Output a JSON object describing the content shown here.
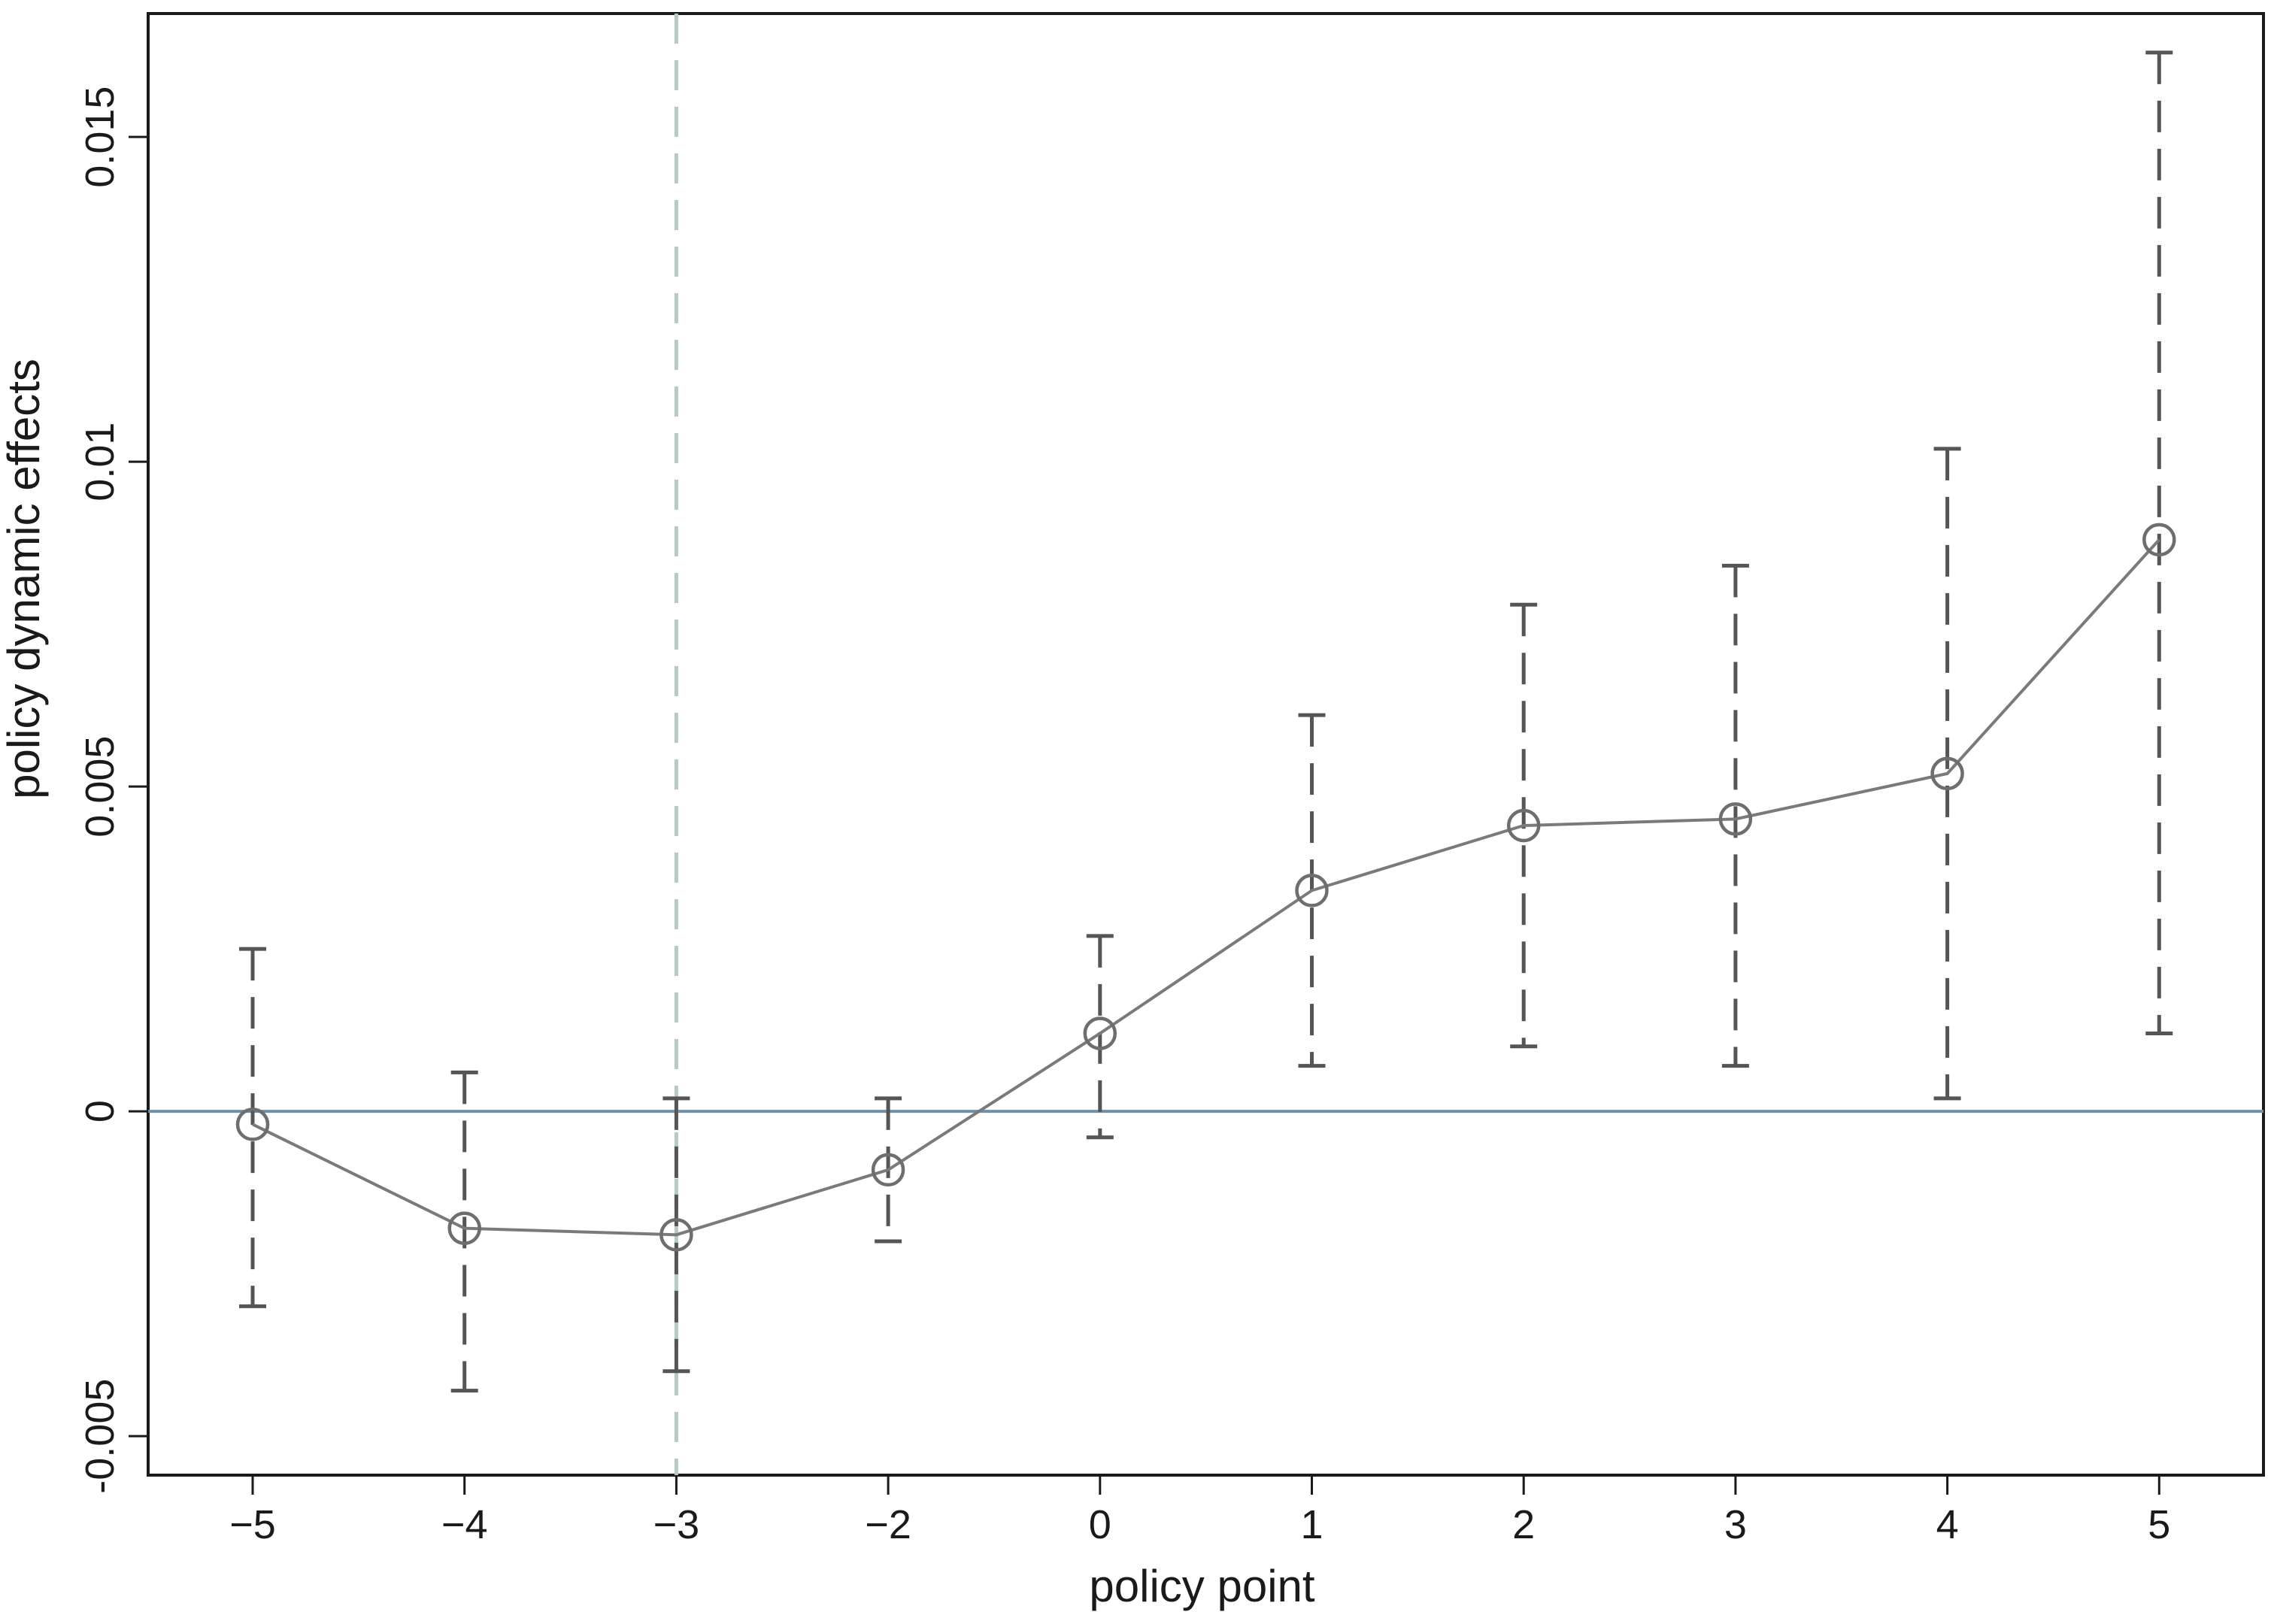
{
  "chart_data": {
    "type": "line",
    "title": "",
    "xlabel": "policy point",
    "ylabel": "policy dynamic effects",
    "x_categories": [
      "-5",
      "-4",
      "-3",
      "-2",
      "0",
      "1",
      "2",
      "3",
      "4",
      "5"
    ],
    "y_ticks": [
      -0.005,
      0,
      0.005,
      0.01,
      0.015
    ],
    "y_tick_labels": [
      "-0.005",
      "0",
      "0.005",
      "0.01",
      "0.015"
    ],
    "ylim": [
      -0.0056,
      0.0169
    ],
    "grid": false,
    "legend": "none",
    "reference_lines": {
      "horizontal_y": 0,
      "vertical_at_category": "-3"
    },
    "series": [
      {
        "estimates": [
          -0.0002,
          -0.0018,
          -0.0019,
          -0.0009,
          0.0012,
          0.0034,
          0.0044,
          0.0045,
          0.0052,
          0.0088
        ],
        "ci_lower": [
          -0.003,
          -0.0043,
          -0.004,
          -0.002,
          -0.0004,
          0.0007,
          0.001,
          0.0007,
          0.0002,
          0.0012
        ],
        "ci_upper": [
          0.0025,
          0.0006,
          0.0002,
          0.0002,
          0.0027,
          0.0061,
          0.0078,
          0.0084,
          0.0102,
          0.0163
        ]
      }
    ],
    "colors": {
      "series_line": "#7a7a7a",
      "marker": "#6e6e6e",
      "ci_bar": "#555555",
      "zero_line": "#6f90a8",
      "vertical_line": "#b6c9c4",
      "frame": "#1a1a1a"
    }
  }
}
